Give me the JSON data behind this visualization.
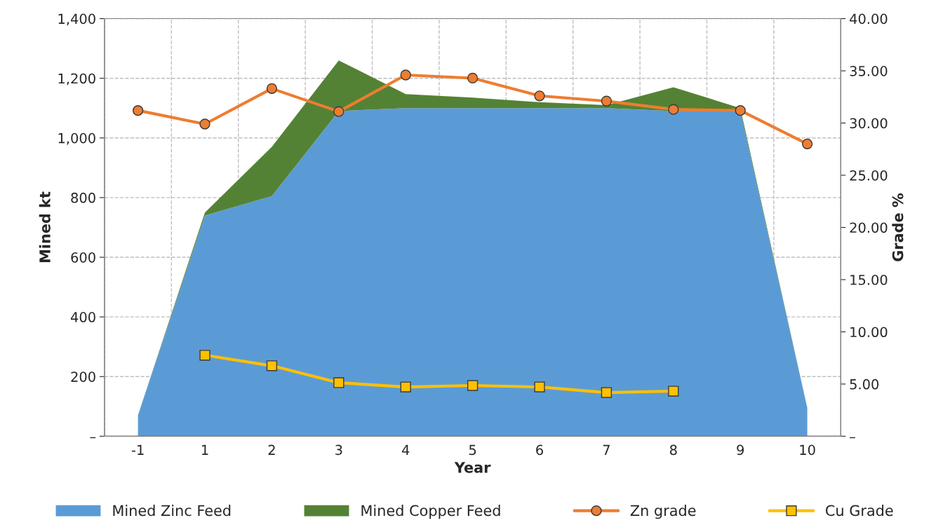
{
  "chart_data": {
    "type": "area",
    "stacked": true,
    "xlabel": "Year",
    "ylabel": "Mined kt",
    "y2label": "Grade %",
    "categories": [
      "-1",
      "1",
      "2",
      "3",
      "4",
      "5",
      "6",
      "7",
      "8",
      "9",
      "10"
    ],
    "series": [
      {
        "name": "Mined Zinc Feed",
        "color": "#5b9bd5",
        "values": [
          70,
          740,
          805,
          1090,
          1100,
          1100,
          1100,
          1100,
          1090,
          1090,
          95
        ]
      },
      {
        "name": "Mined Copper Feed",
        "color": "#548235",
        "values": [
          0,
          10,
          165,
          170,
          47,
          35,
          20,
          10,
          80,
          10,
          0
        ]
      },
      {
        "name": "Zn grade",
        "type": "line",
        "axis": "y2",
        "marker": "circle",
        "color": "#ed7d31",
        "values": [
          31.2,
          29.9,
          33.3,
          31.1,
          34.6,
          34.3,
          32.6,
          32.1,
          31.3,
          31.2,
          28.0
        ]
      },
      {
        "name": "Cu Grade",
        "type": "line",
        "axis": "y2",
        "marker": "square",
        "color": "#ffc000",
        "values": [
          null,
          7.76,
          6.75,
          5.13,
          4.72,
          4.86,
          4.72,
          4.18,
          4.32,
          null,
          null
        ]
      }
    ],
    "ylim": [
      0,
      1400
    ],
    "yticks": [
      {
        "value": 0,
        "label": "–"
      },
      {
        "value": 200,
        "label": "200"
      },
      {
        "value": 400,
        "label": "400"
      },
      {
        "value": 600,
        "label": "600"
      },
      {
        "value": 800,
        "label": "800"
      },
      {
        "value": 1000,
        "label": "1,000"
      },
      {
        "value": 1200,
        "label": "1,200"
      },
      {
        "value": 1400,
        "label": "1,400"
      }
    ],
    "y2lim": [
      0,
      40
    ],
    "y2ticks": [
      {
        "value": 0,
        "label": "–"
      },
      {
        "value": 5,
        "label": "5.00"
      },
      {
        "value": 10,
        "label": "10.00"
      },
      {
        "value": 15,
        "label": "15.00"
      },
      {
        "value": 20,
        "label": "20.00"
      },
      {
        "value": 25,
        "label": "25.00"
      },
      {
        "value": 30,
        "label": "30.00"
      },
      {
        "value": 35,
        "label": "35.00"
      },
      {
        "value": 40,
        "label": "40.00"
      }
    ],
    "grid": true,
    "legend": "bottom"
  }
}
